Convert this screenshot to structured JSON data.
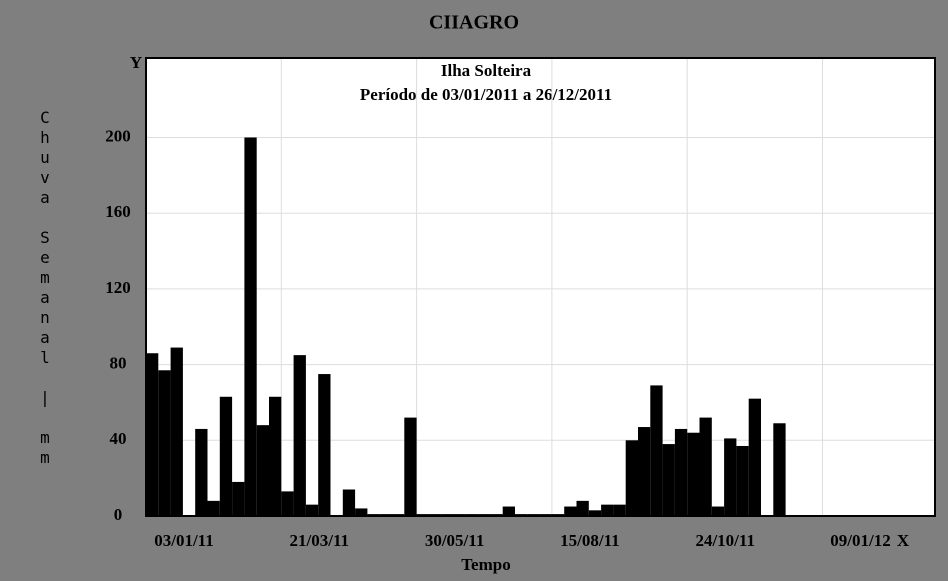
{
  "chart_data": {
    "type": "bar",
    "title": "CIIAGRO",
    "subtitle": [
      "Ilha Solteira",
      "Período de 03/01/2011 a 26/12/2011"
    ],
    "y_axis_label": "Chuva Semanal | mm",
    "x_axis_label": "Tempo",
    "y_axis_name": "Y",
    "x_axis_name": "X",
    "categories": [
      "03/01/11",
      null,
      null,
      null,
      null,
      null,
      null,
      null,
      null,
      null,
      null,
      "21/03/11",
      null,
      null,
      null,
      null,
      null,
      null,
      null,
      null,
      null,
      null,
      "30/05/11",
      null,
      null,
      null,
      null,
      null,
      null,
      null,
      null,
      null,
      null,
      "15/08/11",
      null,
      null,
      null,
      null,
      null,
      null,
      null,
      null,
      null,
      null,
      "24/10/11",
      null,
      null,
      null,
      null,
      null,
      null,
      null,
      null,
      null,
      null,
      "09/01/12"
    ],
    "values": [
      86,
      77,
      89,
      0,
      46,
      8,
      63,
      18,
      200,
      48,
      63,
      13,
      85,
      6,
      75,
      0,
      14,
      4,
      1,
      1,
      1,
      52,
      1,
      1,
      1,
      1,
      1,
      1,
      1,
      5,
      1,
      1,
      1,
      1,
      5,
      8,
      3,
      6,
      6,
      40,
      47,
      69,
      38,
      46,
      44,
      52,
      5,
      41,
      37,
      62,
      0,
      49,
      null,
      null,
      null,
      null
    ],
    "color": "#000000",
    "ylim": [
      0,
      242
    ],
    "yticks": [
      0,
      40,
      80,
      120,
      160,
      200
    ],
    "grid": true
  }
}
